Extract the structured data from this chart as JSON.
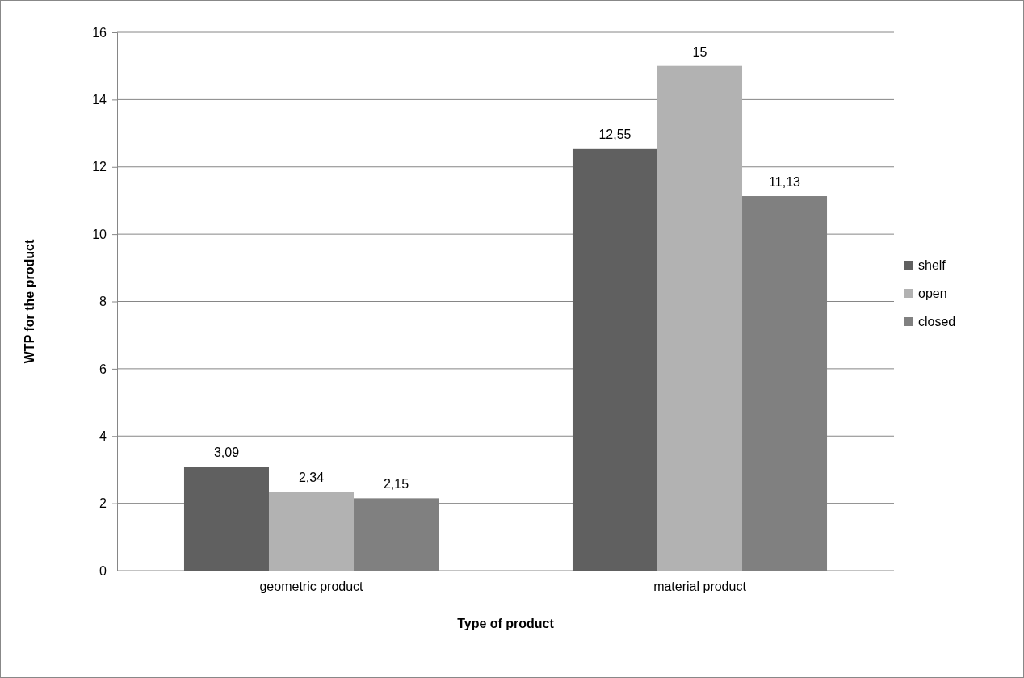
{
  "chart_data": {
    "type": "bar",
    "xlabel": "Type of product",
    "ylabel": "WTP for the product",
    "categories": [
      "geometric product",
      "material product"
    ],
    "series": [
      {
        "name": "shelf",
        "color": "#606060",
        "values": [
          3.09,
          12.55
        ],
        "value_labels": [
          "3,09",
          "12,55"
        ]
      },
      {
        "name": "open",
        "color": "#b2b2b2",
        "values": [
          2.34,
          15
        ],
        "value_labels": [
          "2,34",
          "15"
        ]
      },
      {
        "name": "closed",
        "color": "#808080",
        "values": [
          2.15,
          11.13
        ],
        "value_labels": [
          "2,15",
          "11,13"
        ]
      }
    ],
    "ylim": [
      0,
      16
    ],
    "yticks": [
      0,
      2,
      4,
      6,
      8,
      10,
      12,
      14,
      16
    ],
    "grid": "y",
    "legend": "right"
  }
}
